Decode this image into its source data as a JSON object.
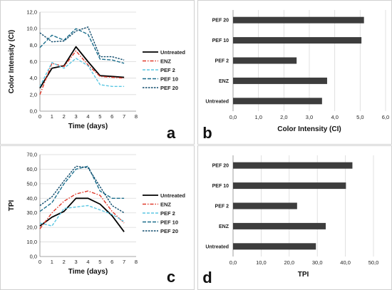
{
  "chart_data": [
    {
      "panel": "a",
      "type": "line",
      "xlabel": "Time (days)",
      "ylabel": "Color Intensity (CI)",
      "xlim": [
        0,
        8
      ],
      "ylim": [
        0,
        12
      ],
      "x_ticks": [
        "0",
        "1",
        "2",
        "3",
        "4",
        "5",
        "6",
        "7",
        "8"
      ],
      "y_ticks": [
        "0,0",
        "2,0",
        "4,0",
        "6,0",
        "8,0",
        "10,0",
        "12,0"
      ],
      "x": [
        0,
        1,
        2,
        3,
        4,
        5,
        6,
        7
      ],
      "legend_position": "right",
      "series": [
        {
          "name": "Untreated",
          "color": "#000000",
          "dash": "",
          "width": 1.8,
          "values": [
            2.8,
            5.2,
            5.5,
            7.8,
            6.0,
            4.3,
            4.2,
            4.1
          ]
        },
        {
          "name": "ENZ",
          "color": "#e03a2b",
          "dash": "5,2,1.5,2",
          "width": 1.4,
          "values": [
            2.0,
            5.8,
            5.4,
            7.3,
            5.6,
            4.2,
            4.1,
            4.0
          ]
        },
        {
          "name": "PEF 2",
          "color": "#5bc7e3",
          "dash": "4,2",
          "width": 1.4,
          "values": [
            3.0,
            5.9,
            5.2,
            6.4,
            5.5,
            3.2,
            3.0,
            3.0
          ]
        },
        {
          "name": "PEF 10",
          "color": "#1b6e8c",
          "dash": "5,2",
          "width": 1.4,
          "values": [
            7.7,
            9.2,
            8.6,
            10.0,
            9.3,
            6.3,
            6.2,
            5.8
          ]
        },
        {
          "name": "PEF 20",
          "color": "#0f4a6b",
          "dash": "2.5,1.5",
          "width": 1.4,
          "values": [
            9.5,
            8.4,
            8.5,
            9.7,
            10.2,
            6.6,
            6.6,
            6.2
          ]
        }
      ]
    },
    {
      "panel": "b",
      "type": "bar",
      "orientation": "horizontal",
      "xlabel": "Color Intensity (CI)",
      "xlim": [
        0,
        6
      ],
      "x_ticks": [
        "0,0",
        "1,0",
        "2,0",
        "3,0",
        "4,0",
        "5,0",
        "6,0"
      ],
      "categories": [
        "PEF 20",
        "PEF 10",
        "PEF 2",
        "ENZ",
        "Untreated"
      ],
      "values": [
        5.15,
        5.05,
        2.5,
        3.7,
        3.5
      ],
      "bar_color": "#3d3d3d"
    },
    {
      "panel": "c",
      "type": "line",
      "xlabel": "Time (days)",
      "ylabel": "TPI",
      "xlim": [
        0,
        8
      ],
      "ylim": [
        0,
        70
      ],
      "x_ticks": [
        "0",
        "1",
        "2",
        "3",
        "4",
        "5",
        "6",
        "7",
        "8"
      ],
      "y_ticks": [
        "0,0",
        "10,0",
        "20,0",
        "30,0",
        "40,0",
        "50,0",
        "60,0",
        "70,0"
      ],
      "x": [
        0,
        1,
        2,
        3,
        4,
        5,
        6,
        7
      ],
      "legend_position": "right",
      "series": [
        {
          "name": "Untreated",
          "color": "#000000",
          "dash": "",
          "width": 1.8,
          "values": [
            21,
            27,
            31,
            40,
            40,
            36,
            28,
            17
          ]
        },
        {
          "name": "ENZ",
          "color": "#e03a2b",
          "dash": "5,2,1.5,2",
          "width": 1.4,
          "values": [
            19,
            30,
            38,
            43,
            45,
            42,
            31,
            23
          ]
        },
        {
          "name": "PEF 2",
          "color": "#5bc7e3",
          "dash": "4,2",
          "width": 1.4,
          "values": [
            23,
            21,
            33,
            34,
            35,
            32,
            29,
            24
          ]
        },
        {
          "name": "PEF 10",
          "color": "#1b6e8c",
          "dash": "5,2",
          "width": 1.4,
          "values": [
            31,
            37,
            50,
            60,
            62,
            45,
            40,
            40
          ]
        },
        {
          "name": "PEF 20",
          "color": "#0f4a6b",
          "dash": "2.5,1.5",
          "width": 1.4,
          "values": [
            35,
            41,
            52,
            62,
            61,
            48,
            35,
            30
          ]
        }
      ]
    },
    {
      "panel": "d",
      "type": "bar",
      "orientation": "horizontal",
      "xlabel": "TPI",
      "xlim": [
        0,
        50
      ],
      "x_ticks": [
        "0,0",
        "10,0",
        "20,0",
        "30,0",
        "40,0",
        "50,0"
      ],
      "categories": [
        "PEF 20",
        "PEF 10",
        "PEF 2",
        "ENZ",
        "Untreated"
      ],
      "values": [
        42.5,
        40.2,
        22.8,
        33,
        29.5
      ],
      "bar_color": "#3d3d3d"
    }
  ]
}
